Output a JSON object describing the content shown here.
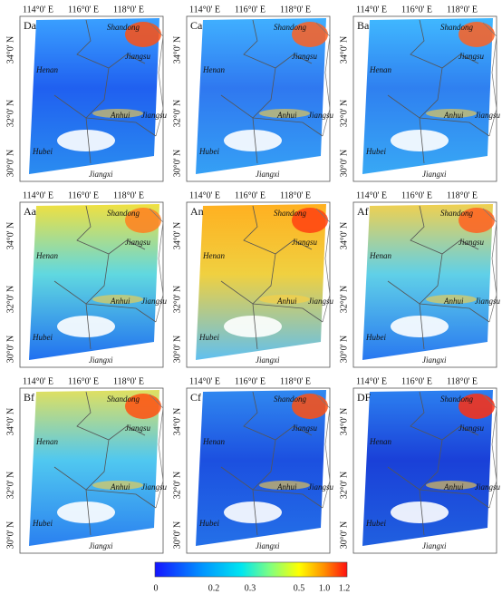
{
  "panels": [
    {
      "label": "Da"
    },
    {
      "label": "Ca"
    },
    {
      "label": "Ba"
    },
    {
      "label": "Aa"
    },
    {
      "label": "An"
    },
    {
      "label": "Af"
    },
    {
      "label": "Bf"
    },
    {
      "label": "Cf"
    },
    {
      "label": "DF"
    }
  ],
  "longitude_labels": [
    "114°0' E",
    "116°0' E",
    "118°0' E"
  ],
  "latitude_labels": [
    "34°0' N",
    "32°0' N",
    "30°0' N"
  ],
  "places": [
    "Shandong",
    "Jiangsu",
    "Henan",
    "Anhui",
    "Jiangsu",
    "Hubei",
    "Jiangxi"
  ],
  "colorbar": {
    "ticks": [
      "0",
      "0.2",
      "0.3",
      "0.5",
      "1.0",
      "1.2"
    ]
  }
}
